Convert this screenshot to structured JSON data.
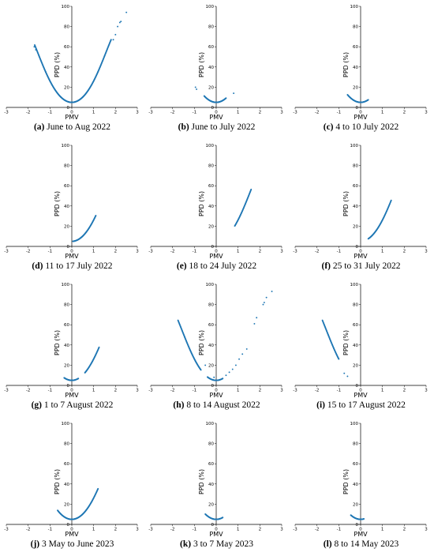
{
  "chart_data": [
    {
      "id": "a",
      "type": "scatter",
      "caption_label": "(a)",
      "caption_text": " June to Aug 2022",
      "xlabel": "PMV",
      "ylabel": "PPD (%)",
      "xlim": [
        -3,
        3
      ],
      "ylim": [
        0,
        100
      ],
      "xticks": [
        -3,
        -2,
        -1,
        0,
        1,
        2,
        3
      ],
      "yticks": [
        0,
        20,
        40,
        60,
        80,
        100
      ],
      "color": "#1f77b4",
      "segments": [
        [
          -1.7,
          -1.2
        ],
        [
          -1.2,
          -0.5
        ],
        [
          -0.5,
          0.5
        ],
        [
          0.5,
          1.2
        ],
        [
          1.2,
          1.8
        ]
      ],
      "points": [
        [
          -1.72,
          60
        ],
        [
          -1.65,
          57
        ],
        [
          1.9,
          67
        ],
        [
          2.0,
          72
        ],
        [
          2.1,
          80
        ],
        [
          2.2,
          84
        ],
        [
          2.25,
          85
        ],
        [
          2.5,
          94
        ]
      ]
    },
    {
      "id": "b",
      "type": "scatter",
      "caption_label": "(b)",
      "caption_text": " June to July 2022",
      "xlabel": "PMV",
      "ylabel": "PPD (%)",
      "xlim": [
        -3,
        3
      ],
      "ylim": [
        0,
        100
      ],
      "xticks": [
        -3,
        -2,
        -1,
        0,
        1,
        2,
        3
      ],
      "yticks": [
        0,
        20,
        40,
        60,
        80,
        100
      ],
      "color": "#1f77b4",
      "segments": [
        [
          -0.55,
          0.45
        ]
      ],
      "points": [
        [
          -0.95,
          20
        ],
        [
          -0.9,
          18
        ],
        [
          0.8,
          14
        ]
      ]
    },
    {
      "id": "c",
      "type": "scatter",
      "caption_label": "(c)",
      "caption_text": " 4 to 10 July 2022",
      "xlabel": "PMV",
      "ylabel": "PPD (%)",
      "xlim": [
        -3,
        3
      ],
      "ylim": [
        0,
        100
      ],
      "xticks": [
        -3,
        -2,
        -1,
        0,
        1,
        2,
        3
      ],
      "yticks": [
        0,
        20,
        40,
        60,
        80,
        100
      ],
      "color": "#1f77b4",
      "segments": [
        [
          -0.6,
          0.35
        ]
      ],
      "points": []
    },
    {
      "id": "d",
      "type": "scatter",
      "caption_label": "(d)",
      "caption_text": " 11 to 17 July 2022",
      "xlabel": "PMV",
      "ylabel": "PPD (%)",
      "xlim": [
        -3,
        3
      ],
      "ylim": [
        0,
        100
      ],
      "xticks": [
        -3,
        -2,
        -1,
        0,
        1,
        2,
        3
      ],
      "yticks": [
        0,
        20,
        40,
        60,
        80,
        100
      ],
      "color": "#1f77b4",
      "segments": [
        [
          0.05,
          1.1
        ]
      ],
      "points": []
    },
    {
      "id": "e",
      "type": "scatter",
      "caption_label": "(e)",
      "caption_text": " 18 to 24 July 2022",
      "xlabel": "PMV",
      "ylabel": "PPD (%)",
      "xlim": [
        -3,
        3
      ],
      "ylim": [
        0,
        100
      ],
      "xticks": [
        -3,
        -2,
        -1,
        0,
        1,
        2,
        3
      ],
      "yticks": [
        0,
        20,
        40,
        60,
        80,
        100
      ],
      "color": "#1f77b4",
      "segments": [
        [
          0.85,
          1.6
        ]
      ],
      "points": []
    },
    {
      "id": "f",
      "type": "scatter",
      "caption_label": "(f)",
      "caption_text": " 25 to 31 July 2022",
      "xlabel": "PMV",
      "ylabel": "PPD (%)",
      "xlim": [
        -3,
        3
      ],
      "ylim": [
        0,
        100
      ],
      "xticks": [
        -3,
        -2,
        -1,
        0,
        1,
        2,
        3
      ],
      "yticks": [
        0,
        20,
        40,
        60,
        80,
        100
      ],
      "color": "#1f77b4",
      "segments": [
        [
          0.35,
          1.4
        ]
      ],
      "points": []
    },
    {
      "id": "g",
      "type": "scatter",
      "caption_label": "(g)",
      "caption_text": " 1 to 7 August 2022",
      "xlabel": "PMV",
      "ylabel": "PPD (%)",
      "xlim": [
        -3,
        3
      ],
      "ylim": [
        0,
        100
      ],
      "xticks": [
        -3,
        -2,
        -1,
        0,
        1,
        2,
        3
      ],
      "yticks": [
        0,
        20,
        40,
        60,
        80,
        100
      ],
      "color": "#1f77b4",
      "segments": [
        [
          -0.35,
          0.3
        ],
        [
          0.6,
          1.25
        ]
      ],
      "points": []
    },
    {
      "id": "h",
      "type": "scatter",
      "caption_label": "(h)",
      "caption_text": " 8 to 14 August 2022",
      "xlabel": "PMV",
      "ylabel": "PPD (%)",
      "xlim": [
        -3,
        3
      ],
      "ylim": [
        0,
        100
      ],
      "xticks": [
        -3,
        -2,
        -1,
        0,
        1,
        2,
        3
      ],
      "yticks": [
        0,
        20,
        40,
        60,
        80,
        100
      ],
      "color": "#1f77b4",
      "segments": [
        [
          -1.75,
          -1.45
        ],
        [
          -1.45,
          -0.7
        ],
        [
          -0.4,
          0.3
        ]
      ],
      "points": [
        [
          -0.5,
          20
        ],
        [
          -0.1,
          8
        ],
        [
          0.45,
          10
        ],
        [
          0.6,
          13
        ],
        [
          0.75,
          16
        ],
        [
          0.9,
          20
        ],
        [
          1.05,
          26
        ],
        [
          1.2,
          31
        ],
        [
          1.4,
          36
        ],
        [
          1.75,
          61
        ],
        [
          1.85,
          67
        ],
        [
          2.15,
          80
        ],
        [
          2.2,
          82
        ],
        [
          2.3,
          87
        ],
        [
          2.55,
          93
        ]
      ]
    },
    {
      "id": "i",
      "type": "scatter",
      "caption_label": "(i)",
      "caption_text": " 15 to 17 August 2022",
      "xlabel": "PMV",
      "ylabel": "PPD (%)",
      "xlim": [
        -3,
        3
      ],
      "ylim": [
        0,
        100
      ],
      "xticks": [
        -3,
        -2,
        -1,
        0,
        1,
        2,
        3
      ],
      "yticks": [
        0,
        20,
        40,
        60,
        80,
        100
      ],
      "color": "#1f77b4",
      "segments": [
        [
          -1.75,
          -1.0
        ]
      ],
      "points": [
        [
          -0.75,
          12
        ],
        [
          -0.6,
          9
        ]
      ]
    },
    {
      "id": "j",
      "type": "scatter",
      "caption_label": "(j)",
      "caption_text": " 3 May to June 2023",
      "xlabel": "PMV",
      "ylabel": "PPD (%)",
      "xlim": [
        -3,
        3
      ],
      "ylim": [
        0,
        100
      ],
      "xticks": [
        -3,
        -2,
        -1,
        0,
        1,
        2,
        3
      ],
      "yticks": [
        0,
        20,
        40,
        60,
        80,
        100
      ],
      "color": "#1f77b4",
      "segments": [
        [
          -0.65,
          1.2
        ]
      ],
      "points": []
    },
    {
      "id": "k",
      "type": "scatter",
      "caption_label": "(k)",
      "caption_text": " 3 to 7 May 2023",
      "xlabel": "PMV",
      "ylabel": "PPD (%)",
      "xlim": [
        -3,
        3
      ],
      "ylim": [
        0,
        100
      ],
      "xticks": [
        -3,
        -2,
        -1,
        0,
        1,
        2,
        3
      ],
      "yticks": [
        0,
        20,
        40,
        60,
        80,
        100
      ],
      "color": "#1f77b4",
      "segments": [
        [
          -0.5,
          0.3
        ]
      ],
      "points": []
    },
    {
      "id": "l",
      "type": "scatter",
      "caption_label": "(l)",
      "caption_text": " 8 to 14 May 2023",
      "xlabel": "PMV",
      "ylabel": "PPD (%)",
      "xlim": [
        -3,
        3
      ],
      "ylim": [
        0,
        100
      ],
      "xticks": [
        -3,
        -2,
        -1,
        0,
        1,
        2,
        3
      ],
      "yticks": [
        0,
        20,
        40,
        60,
        80,
        100
      ],
      "color": "#1f77b4",
      "segments": [
        [
          -0.45,
          0.15
        ]
      ],
      "points": []
    }
  ]
}
